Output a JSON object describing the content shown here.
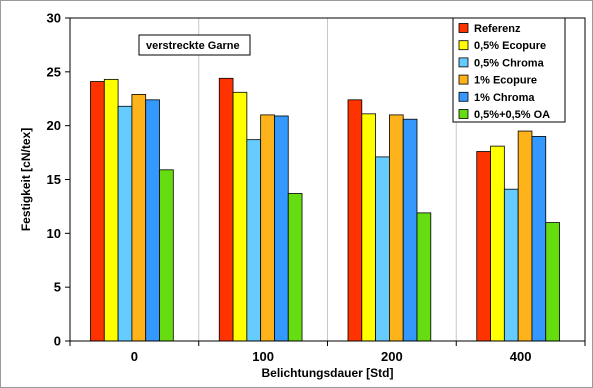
{
  "chart_data": {
    "type": "bar",
    "categories": [
      "0",
      "100",
      "200",
      "400"
    ],
    "series": [
      {
        "name": "Referenz",
        "color": "#ff3300",
        "values": [
          24.1,
          24.4,
          22.4,
          17.6
        ]
      },
      {
        "name": "0,5% Ecopure",
        "color": "#ffff00",
        "values": [
          24.3,
          23.1,
          21.1,
          18.1
        ]
      },
      {
        "name": "0,5% Chroma",
        "color": "#66ccff",
        "values": [
          21.8,
          18.7,
          17.1,
          14.1
        ]
      },
      {
        "name": "1% Ecopure",
        "color": "#ffb31a",
        "values": [
          22.9,
          21.0,
          21.0,
          19.5
        ]
      },
      {
        "name": "1% Chroma",
        "color": "#3399ff",
        "values": [
          22.4,
          20.9,
          20.6,
          19.0
        ]
      },
      {
        "name": "0,5%+0,5% OA",
        "color": "#66dd11",
        "values": [
          15.9,
          13.7,
          11.9,
          11.0
        ]
      }
    ],
    "xlabel": "Belichtungsdauer [Std]",
    "ylabel": "Festigkeit [cN/tex]",
    "ylim": [
      0,
      30
    ],
    "yticks": [
      0,
      5,
      10,
      15,
      20,
      25,
      30
    ],
    "annotation": "verstreckte Garne",
    "grid": "vertical separators between categories",
    "legend_position": "top-right"
  }
}
